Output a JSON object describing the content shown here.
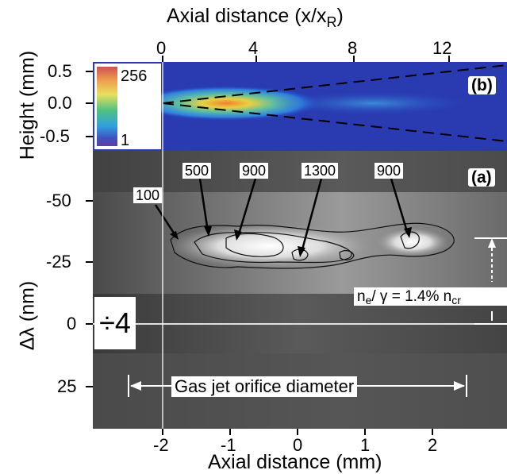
{
  "figure": {
    "top_axis": {
      "title_main": "Axial distance (x/x",
      "title_sub": "R",
      "title_close": ")",
      "ticks": [
        "0",
        "4",
        "8",
        "12"
      ]
    },
    "bottom_axis": {
      "title": "Axial distance (mm)",
      "ticks": [
        "-2",
        "-1",
        "0",
        "1",
        "2"
      ]
    },
    "panel_b": {
      "label": "(b)",
      "y_title": "Height (mm)",
      "y_ticks": [
        "0.5",
        "0.0",
        "-0.5"
      ],
      "colorbar": {
        "max_label": "256",
        "min_label": "1"
      }
    },
    "panel_a": {
      "label": "(a)",
      "y_title": "Δλ (nm)",
      "y_ticks": [
        "-50",
        "-25",
        "0",
        "25"
      ],
      "contour_labels": [
        "100",
        "500",
        "900",
        "1300",
        "900"
      ],
      "density_main": "n",
      "density_sub_e": "e",
      "density_mid": "/ γ  = 1.4% n",
      "density_sub_cr": "cr",
      "divisor": "÷4",
      "orifice_label": "Gas jet orifice diameter"
    }
  }
}
